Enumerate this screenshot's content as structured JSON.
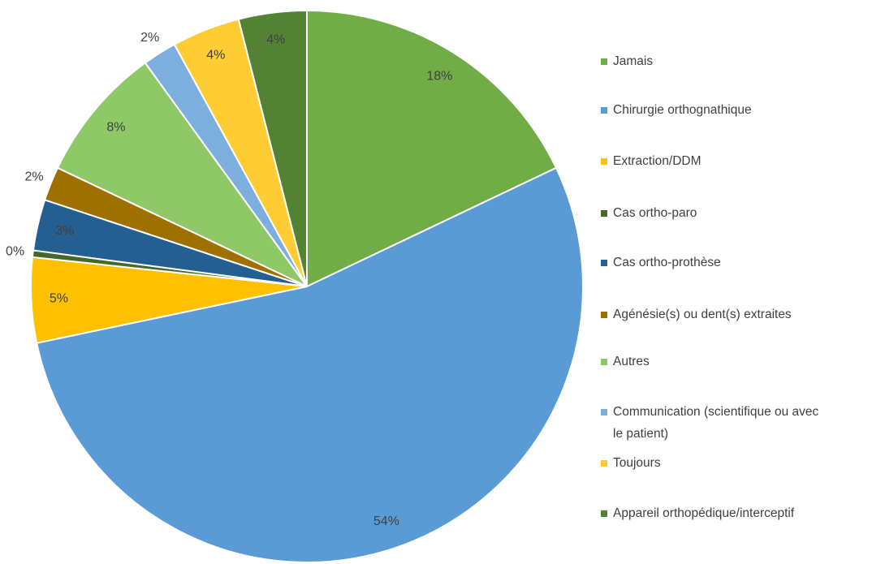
{
  "chart_data": {
    "type": "pie",
    "categories": [
      "Jamais",
      "Chirurgie orthognathique",
      "Extraction/DDM",
      "Cas ortho-paro",
      "Cas ortho-prothèse",
      "Agénésie(s) ou dent(s) extraites",
      "Autres",
      "Communication (scientifique ou avec le patient)",
      "Toujours",
      "Appareil orthopédique/interceptif"
    ],
    "values": [
      18,
      54,
      5,
      0.4,
      3,
      2,
      8,
      2,
      4,
      4
    ],
    "value_labels": [
      "18%",
      "54%",
      "5%",
      "0%",
      "3%",
      "2%",
      "8%",
      "2%",
      "4%",
      "4%"
    ],
    "colors": [
      "#70ad47",
      "#5b9bd5",
      "#ffc000",
      "#43682b",
      "#255e91",
      "#9e7000",
      "#8fc866",
      "#7cafdd",
      "#ffcd33",
      "#548235"
    ],
    "legend": "right"
  }
}
